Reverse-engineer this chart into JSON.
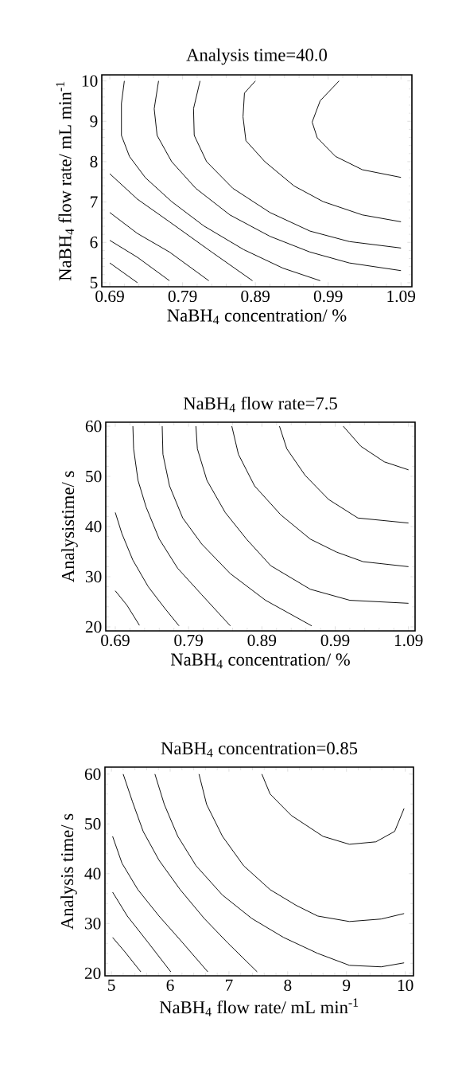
{
  "chart_data": [
    {
      "type": "line",
      "title": "Analysis time=40.0",
      "xlabel": "NaBH$_{4}$ concentration/ %",
      "ylabel": "NaBH$_{4}$ flow rate/ mL min$^{-1}$",
      "xlim": [
        0.679,
        1.105
      ],
      "ylim": [
        4.9,
        10.15
      ],
      "xticks": [
        0.69,
        0.79,
        0.89,
        0.99,
        1.09
      ],
      "yticks": [
        5,
        6,
        7,
        8,
        9,
        10
      ],
      "series": [
        {
          "color": "#000000",
          "x": [
            0.69,
            0.728
          ],
          "values": [
            5.49,
            5.0
          ]
        },
        {
          "color": "#000000",
          "x": [
            0.69,
            0.728,
            0.772
          ],
          "values": [
            6.05,
            5.63,
            5.05
          ]
        },
        {
          "color": "#000000",
          "x": [
            0.69,
            0.728,
            0.772,
            0.826
          ],
          "values": [
            6.74,
            6.22,
            5.76,
            5.05
          ]
        },
        {
          "color": "#000000",
          "x": [
            0.69,
            0.728,
            0.772,
            0.83,
            0.886
          ],
          "values": [
            7.7,
            7.07,
            6.51,
            5.76,
            5.05
          ]
        },
        {
          "color": "#000000",
          "x": [
            0.71,
            0.706,
            0.706,
            0.717,
            0.739,
            0.775,
            0.819,
            0.874,
            0.928,
            0.979
          ],
          "values": [
            10.0,
            9.44,
            8.65,
            8.13,
            7.6,
            7.01,
            6.41,
            5.82,
            5.36,
            5.05
          ]
        },
        {
          "color": "#000000",
          "x": [
            0.757,
            0.751,
            0.755,
            0.775,
            0.808,
            0.855,
            0.91,
            0.965,
            1.019,
            1.09
          ],
          "values": [
            10.0,
            9.31,
            8.65,
            8.0,
            7.34,
            6.68,
            6.15,
            5.76,
            5.49,
            5.3
          ]
        },
        {
          "color": "#000000",
          "x": [
            0.814,
            0.805,
            0.806,
            0.823,
            0.859,
            0.91,
            0.965,
            1.019,
            1.09
          ],
          "values": [
            10.0,
            9.31,
            8.65,
            8.0,
            7.34,
            6.74,
            6.28,
            6.02,
            5.86
          ]
        },
        {
          "color": "#000000",
          "x": [
            0.89,
            0.875,
            0.873,
            0.877,
            0.903,
            0.943,
            0.983,
            1.037,
            1.09
          ],
          "values": [
            10.0,
            9.7,
            9.11,
            8.52,
            8.0,
            7.4,
            7.01,
            6.68,
            6.51
          ]
        },
        {
          "color": "#000000",
          "x": [
            1.005,
            0.979,
            0.968,
            0.975,
            1.0,
            1.037,
            1.09
          ],
          "values": [
            10.0,
            9.51,
            8.98,
            8.59,
            8.13,
            7.8,
            7.61
          ]
        }
      ]
    },
    {
      "type": "line",
      "title": "NaBH$_{4}$ flow rate=7.5",
      "xlabel": "NaBH$_{4}$ concentration/ %",
      "ylabel": "Analysistime/ s",
      "xlim": [
        0.677,
        1.099
      ],
      "ylim": [
        19.2,
        60.8
      ],
      "xticks": [
        0.69,
        0.79,
        0.89,
        0.99,
        1.09
      ],
      "yticks": [
        20,
        30,
        40,
        50,
        60
      ],
      "series": [
        {
          "color": "#000000",
          "x": [
            0.69,
            0.706,
            0.723
          ],
          "values": [
            27.2,
            24.3,
            20.3
          ]
        },
        {
          "color": "#000000",
          "x": [
            0.69,
            0.699,
            0.714,
            0.735,
            0.757,
            0.777
          ],
          "values": [
            42.8,
            38.6,
            33.3,
            28.0,
            23.8,
            20.2
          ]
        },
        {
          "color": "#000000",
          "x": [
            0.714,
            0.715,
            0.721,
            0.732,
            0.75,
            0.775,
            0.808,
            0.847
          ],
          "values": [
            60,
            55.5,
            49.2,
            43.9,
            37.5,
            31.7,
            26.4,
            20.2
          ]
        },
        {
          "color": "#000000",
          "x": [
            0.754,
            0.755,
            0.764,
            0.782,
            0.808,
            0.847,
            0.895,
            0.958
          ],
          "values": [
            60,
            54.4,
            48.1,
            41.7,
            36.5,
            30.6,
            25.3,
            20.2
          ]
        },
        {
          "color": "#000000",
          "x": [
            0.8,
            0.802,
            0.815,
            0.84,
            0.869,
            0.902,
            0.956,
            1.01,
            1.09
          ],
          "values": [
            60,
            55.5,
            49.2,
            42.8,
            37.5,
            32.2,
            27.5,
            25.3,
            24.7
          ]
        },
        {
          "color": "#000000",
          "x": [
            0.849,
            0.858,
            0.88,
            0.916,
            0.956,
            0.992,
            1.028,
            1.09
          ],
          "values": [
            60,
            54.4,
            48.1,
            42.3,
            37.5,
            34.9,
            33.0,
            32.0
          ]
        },
        {
          "color": "#000000",
          "x": [
            0.914,
            0.924,
            0.949,
            0.981,
            1.021,
            1.09
          ],
          "values": [
            60,
            55.5,
            50.2,
            45.4,
            41.7,
            40.7
          ]
        },
        {
          "color": "#000000",
          "x": [
            1.001,
            1.025,
            1.057,
            1.09
          ],
          "values": [
            60,
            56.0,
            52.9,
            51.3
          ]
        }
      ]
    },
    {
      "type": "line",
      "title": "NaBH$_{4}$ concentration=0.85",
      "xlabel": "NaBH$_{4}$ flow rate/ mL min$^{-1}$",
      "ylabel": "Analysis time/ s",
      "xlim": [
        4.89,
        10.14
      ],
      "ylim": [
        19.5,
        61.4
      ],
      "xticks": [
        5,
        6,
        7,
        8,
        9,
        10
      ],
      "yticks": [
        20,
        30,
        40,
        50,
        60
      ],
      "series": [
        {
          "color": "#000000",
          "x": [
            5.02,
            5.23,
            5.5
          ],
          "values": [
            27.2,
            24.3,
            20.3
          ]
        },
        {
          "color": "#000000",
          "x": [
            5.02,
            5.27,
            5.63,
            6.01
          ],
          "values": [
            36.3,
            31.5,
            26.1,
            20.3
          ]
        },
        {
          "color": "#000000",
          "x": [
            5.02,
            5.18,
            5.45,
            5.81,
            6.17,
            6.64
          ],
          "values": [
            47.5,
            42.1,
            36.8,
            31.5,
            26.7,
            20.3
          ]
        },
        {
          "color": "#000000",
          "x": [
            5.2,
            5.36,
            5.54,
            5.81,
            6.17,
            6.58,
            6.98,
            7.48
          ],
          "values": [
            60,
            54.4,
            48.5,
            42.7,
            36.8,
            31.0,
            26.1,
            20.3
          ]
        },
        {
          "color": "#000000",
          "x": [
            5.74,
            5.9,
            6.13,
            6.44,
            6.89,
            7.39,
            7.93,
            8.51,
            9.05,
            9.59,
            9.98
          ],
          "values": [
            60,
            53.9,
            47.5,
            41.6,
            35.7,
            31.0,
            27.2,
            24.0,
            21.6,
            21.3,
            22.1
          ]
        },
        {
          "color": "#000000",
          "x": [
            6.49,
            6.62,
            6.89,
            7.25,
            7.7,
            8.15,
            8.51,
            9.05,
            9.59,
            9.98
          ],
          "values": [
            60,
            53.9,
            47.5,
            41.6,
            36.8,
            33.6,
            31.5,
            30.4,
            30.9,
            32.0
          ]
        },
        {
          "color": "#000000",
          "x": [
            7.56,
            7.7,
            8.06,
            8.6,
            9.05,
            9.5,
            9.82,
            9.98
          ],
          "values": [
            60,
            56.0,
            51.7,
            47.5,
            45.9,
            46.4,
            48.5,
            53.1
          ]
        }
      ]
    }
  ]
}
